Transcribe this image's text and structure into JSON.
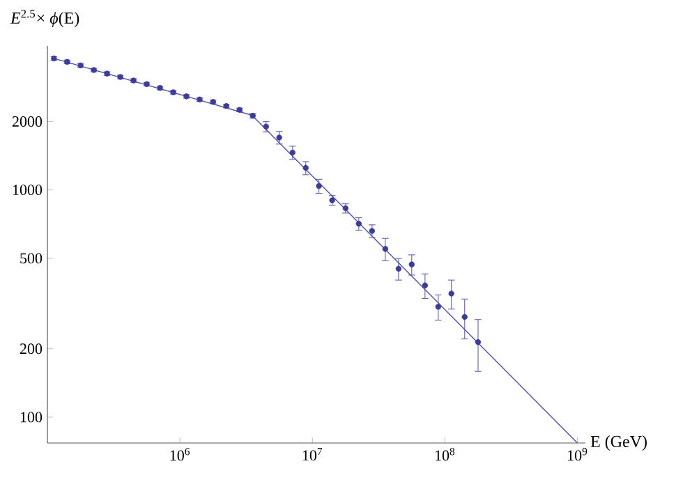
{
  "chart_data": {
    "type": "scatter",
    "xlabel": "E (GeV)",
    "ylabel": "*E*$^{2.5}$× *ϕ*(E)",
    "log": "xy",
    "grid": false,
    "xlim": [
      100000,
      1150000000
    ],
    "ylim": [
      77,
      4300
    ],
    "xticks": [
      {
        "value": 1000000,
        "label": "10$^{6}$"
      },
      {
        "value": 10000000,
        "label": "10$^{7}$"
      },
      {
        "value": 100000000,
        "label": "10$^{8}$"
      },
      {
        "value": 1000000000,
        "label": "10$^{9}$"
      }
    ],
    "yticks": [
      100,
      200,
      500,
      1000,
      2000
    ],
    "series": [
      {
        "color": "#3b3b98",
        "marker": "circle",
        "x": [
          112000,
          141000,
          178000,
          224000,
          282000,
          355000,
          447000,
          562000,
          708000,
          891000,
          1120000,
          1410000,
          1780000,
          2240000,
          2820000,
          3550000,
          4470000,
          5620000,
          7080000,
          8910000,
          11200000,
          14100000,
          17800000,
          22400000,
          28200000,
          35500000,
          44700000,
          56200000,
          70800000,
          89100000,
          112000000,
          141000000,
          178000000
        ],
        "values": [
          3790,
          3660,
          3530,
          3370,
          3250,
          3140,
          3030,
          2920,
          2810,
          2690,
          2580,
          2500,
          2440,
          2340,
          2250,
          2120,
          1900,
          1700,
          1460,
          1250,
          1040,
          900,
          830,
          710,
          660,
          550,
          450,
          470,
          380,
          306,
          350,
          276,
          214
        ],
        "errors": [
          70,
          67,
          65,
          62,
          60,
          58,
          56,
          54,
          52,
          50,
          47,
          46,
          45,
          43,
          41,
          50,
          99,
          108,
          97,
          83,
          74,
          45,
          39,
          45,
          42,
          62,
          49,
          48,
          47,
          39,
          51,
          55,
          55
        ]
      },
      {
        "type": "line",
        "color": "#5050b0",
        "marker": "none",
        "line_style": "solid",
        "x": [
          112000,
          1000000,
          3500000,
          1000000000
        ],
        "values": [
          3790,
          2630,
          2130,
          77
        ]
      }
    ]
  }
}
